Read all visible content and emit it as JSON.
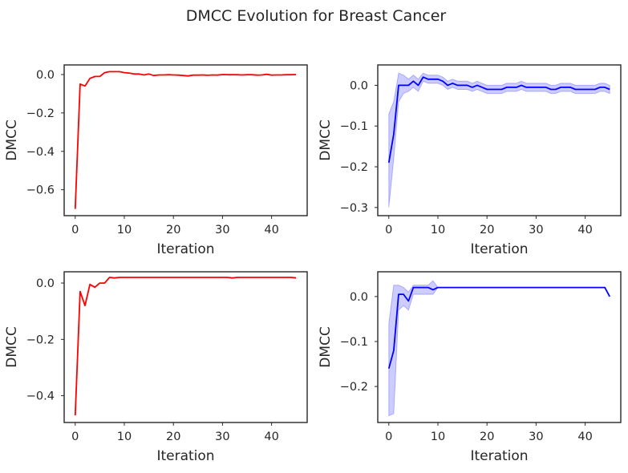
{
  "title": "DMCC Evolution for Breast Cancer",
  "chart_data": [
    {
      "type": "line",
      "color": "#ff0000",
      "xlabel": "Iteration",
      "ylabel": "DMCC",
      "xlim": [
        -2.25,
        47.25
      ],
      "ylim": [
        -0.735,
        0.05
      ],
      "xticks": [
        0,
        10,
        20,
        30,
        40
      ],
      "yticks": [
        -0.6,
        -0.4,
        -0.2,
        0.0
      ],
      "ytick_labels": [
        "−0.6",
        "−0.4",
        "−0.2",
        "0.0"
      ],
      "x": [
        0,
        1,
        2,
        3,
        4,
        5,
        6,
        7,
        8,
        9,
        10,
        11,
        12,
        13,
        14,
        15,
        16,
        17,
        18,
        19,
        20,
        21,
        22,
        23,
        24,
        25,
        26,
        27,
        28,
        29,
        30,
        31,
        32,
        33,
        34,
        35,
        36,
        37,
        38,
        39,
        40,
        41,
        42,
        43,
        44,
        45
      ],
      "y": [
        -0.7,
        -0.05,
        -0.06,
        -0.02,
        -0.01,
        -0.01,
        0.01,
        0.015,
        0.015,
        0.015,
        0.01,
        0.008,
        0.003,
        0.003,
        -0.002,
        0.003,
        -0.005,
        -0.002,
        -0.002,
        -0.001,
        -0.002,
        -0.003,
        -0.005,
        -0.007,
        -0.003,
        -0.003,
        -0.002,
        -0.004,
        -0.002,
        -0.003,
        0.0,
        -0.001,
        -0.001,
        -0.001,
        -0.002,
        -0.001,
        -0.001,
        -0.003,
        -0.002,
        0.001,
        -0.003,
        -0.002,
        -0.002,
        -0.001,
        -0.001,
        0.0
      ]
    },
    {
      "type": "line",
      "color": "#0000ff",
      "band_color": "#0000ff",
      "xlabel": "Iteration",
      "ylabel": "DMCC",
      "xlim": [
        -2.25,
        47.25
      ],
      "ylim": [
        -0.32,
        0.05
      ],
      "xticks": [
        0,
        10,
        20,
        30,
        40
      ],
      "yticks": [
        -0.3,
        -0.2,
        -0.1,
        0.0
      ],
      "ytick_labels": [
        "−0.3",
        "−0.2",
        "−0.1",
        "0.0"
      ],
      "x": [
        0,
        1,
        2,
        3,
        4,
        5,
        6,
        7,
        8,
        9,
        10,
        11,
        12,
        13,
        14,
        15,
        16,
        17,
        18,
        19,
        20,
        21,
        22,
        23,
        24,
        25,
        26,
        27,
        28,
        29,
        30,
        31,
        32,
        33,
        34,
        35,
        36,
        37,
        38,
        39,
        40,
        41,
        42,
        43,
        44,
        45
      ],
      "y": [
        -0.19,
        -0.12,
        0.0,
        0.0,
        0.0,
        0.01,
        0.0,
        0.02,
        0.015,
        0.015,
        0.015,
        0.01,
        0.0,
        0.005,
        0.0,
        0.0,
        0.0,
        -0.005,
        0.0,
        -0.005,
        -0.01,
        -0.01,
        -0.01,
        -0.01,
        -0.005,
        -0.005,
        -0.005,
        0.0,
        -0.005,
        -0.005,
        -0.005,
        -0.005,
        -0.005,
        -0.01,
        -0.01,
        -0.005,
        -0.005,
        -0.005,
        -0.01,
        -0.01,
        -0.01,
        -0.01,
        -0.01,
        -0.005,
        -0.005,
        -0.01
      ],
      "y_low": [
        -0.3,
        -0.18,
        -0.04,
        -0.02,
        -0.015,
        -0.005,
        -0.015,
        0.01,
        0.005,
        0.005,
        0.005,
        0.0,
        -0.01,
        -0.005,
        -0.01,
        -0.01,
        -0.01,
        -0.015,
        -0.01,
        -0.015,
        -0.02,
        -0.02,
        -0.02,
        -0.02,
        -0.015,
        -0.015,
        -0.015,
        -0.01,
        -0.015,
        -0.015,
        -0.015,
        -0.015,
        -0.015,
        -0.02,
        -0.02,
        -0.015,
        -0.015,
        -0.015,
        -0.02,
        -0.02,
        -0.02,
        -0.02,
        -0.02,
        -0.015,
        -0.015,
        -0.02
      ],
      "y_high": [
        -0.07,
        -0.04,
        0.03,
        0.025,
        0.015,
        0.025,
        0.015,
        0.03,
        0.025,
        0.025,
        0.025,
        0.02,
        0.01,
        0.015,
        0.01,
        0.01,
        0.01,
        0.005,
        0.01,
        0.005,
        0.0,
        0.0,
        0.0,
        0.0,
        0.005,
        0.005,
        0.005,
        0.01,
        0.005,
        0.005,
        0.005,
        0.005,
        0.005,
        0.0,
        0.0,
        0.005,
        0.005,
        0.005,
        0.0,
        0.0,
        0.0,
        0.0,
        0.0,
        0.005,
        0.005,
        0.0
      ]
    },
    {
      "type": "line",
      "color": "#ff0000",
      "xlabel": "Iteration",
      "ylabel": "DMCC",
      "xlim": [
        -2.25,
        47.25
      ],
      "ylim": [
        -0.495,
        0.04
      ],
      "xticks": [
        0,
        10,
        20,
        30,
        40
      ],
      "yticks": [
        -0.4,
        -0.2,
        0.0
      ],
      "ytick_labels": [
        "−0.4",
        "−0.2",
        "0.0"
      ],
      "x": [
        0,
        1,
        2,
        3,
        4,
        5,
        6,
        7,
        8,
        9,
        10,
        11,
        12,
        13,
        14,
        15,
        16,
        17,
        18,
        19,
        20,
        21,
        22,
        23,
        24,
        25,
        26,
        27,
        28,
        29,
        30,
        31,
        32,
        33,
        34,
        35,
        36,
        37,
        38,
        39,
        40,
        41,
        42,
        43,
        44,
        45
      ],
      "y": [
        -0.47,
        -0.03,
        -0.08,
        -0.005,
        -0.015,
        0.0,
        0.0,
        0.02,
        0.018,
        0.02,
        0.02,
        0.02,
        0.02,
        0.02,
        0.02,
        0.02,
        0.02,
        0.02,
        0.02,
        0.02,
        0.02,
        0.02,
        0.02,
        0.02,
        0.02,
        0.02,
        0.02,
        0.02,
        0.02,
        0.02,
        0.02,
        0.02,
        0.018,
        0.02,
        0.02,
        0.02,
        0.02,
        0.02,
        0.02,
        0.02,
        0.02,
        0.02,
        0.02,
        0.02,
        0.02,
        0.018
      ]
    },
    {
      "type": "line",
      "color": "#0000ff",
      "band_color": "#0000ff",
      "xlabel": "Iteration",
      "ylabel": "DMCC",
      "xlim": [
        -2.25,
        47.25
      ],
      "ylim": [
        -0.28,
        0.055
      ],
      "xticks": [
        0,
        10,
        20,
        30,
        40
      ],
      "yticks": [
        -0.2,
        -0.1,
        0.0
      ],
      "ytick_labels": [
        "−0.2",
        "−0.1",
        "0.0"
      ],
      "x": [
        0,
        1,
        2,
        3,
        4,
        5,
        6,
        7,
        8,
        9,
        10,
        11,
        12,
        13,
        14,
        15,
        16,
        17,
        18,
        19,
        20,
        21,
        22,
        23,
        24,
        25,
        26,
        27,
        28,
        29,
        30,
        31,
        32,
        33,
        34,
        35,
        36,
        37,
        38,
        39,
        40,
        41,
        42,
        43,
        44,
        45
      ],
      "y": [
        -0.16,
        -0.12,
        0.005,
        0.005,
        -0.01,
        0.02,
        0.02,
        0.02,
        0.02,
        0.015,
        0.02,
        0.02,
        0.02,
        0.02,
        0.02,
        0.02,
        0.02,
        0.02,
        0.02,
        0.02,
        0.02,
        0.02,
        0.02,
        0.02,
        0.02,
        0.02,
        0.02,
        0.02,
        0.02,
        0.02,
        0.02,
        0.02,
        0.02,
        0.02,
        0.02,
        0.02,
        0.02,
        0.02,
        0.02,
        0.02,
        0.02,
        0.02,
        0.02,
        0.02,
        0.02,
        0.0
      ],
      "y_low": [
        -0.265,
        -0.26,
        -0.03,
        -0.02,
        -0.03,
        0.005,
        0.005,
        0.005,
        0.005,
        0.005,
        0.02,
        0.02,
        0.02,
        0.02,
        0.02,
        0.02,
        0.02,
        0.02,
        0.02,
        0.02,
        0.02,
        0.02,
        0.02,
        0.02,
        0.02,
        0.02,
        0.02,
        0.02,
        0.02,
        0.02,
        0.02,
        0.02,
        0.02,
        0.02,
        0.02,
        0.02,
        0.02,
        0.02,
        0.02,
        0.02,
        0.02,
        0.02,
        0.02,
        0.02,
        0.02,
        0.0
      ],
      "y_high": [
        -0.06,
        0.025,
        0.025,
        0.02,
        0.01,
        0.025,
        0.025,
        0.025,
        0.025,
        0.035,
        0.02,
        0.02,
        0.02,
        0.02,
        0.02,
        0.02,
        0.02,
        0.02,
        0.02,
        0.02,
        0.02,
        0.02,
        0.02,
        0.02,
        0.02,
        0.02,
        0.02,
        0.02,
        0.02,
        0.02,
        0.02,
        0.02,
        0.02,
        0.02,
        0.02,
        0.02,
        0.02,
        0.02,
        0.02,
        0.02,
        0.02,
        0.02,
        0.02,
        0.02,
        0.02,
        0.0
      ]
    }
  ]
}
